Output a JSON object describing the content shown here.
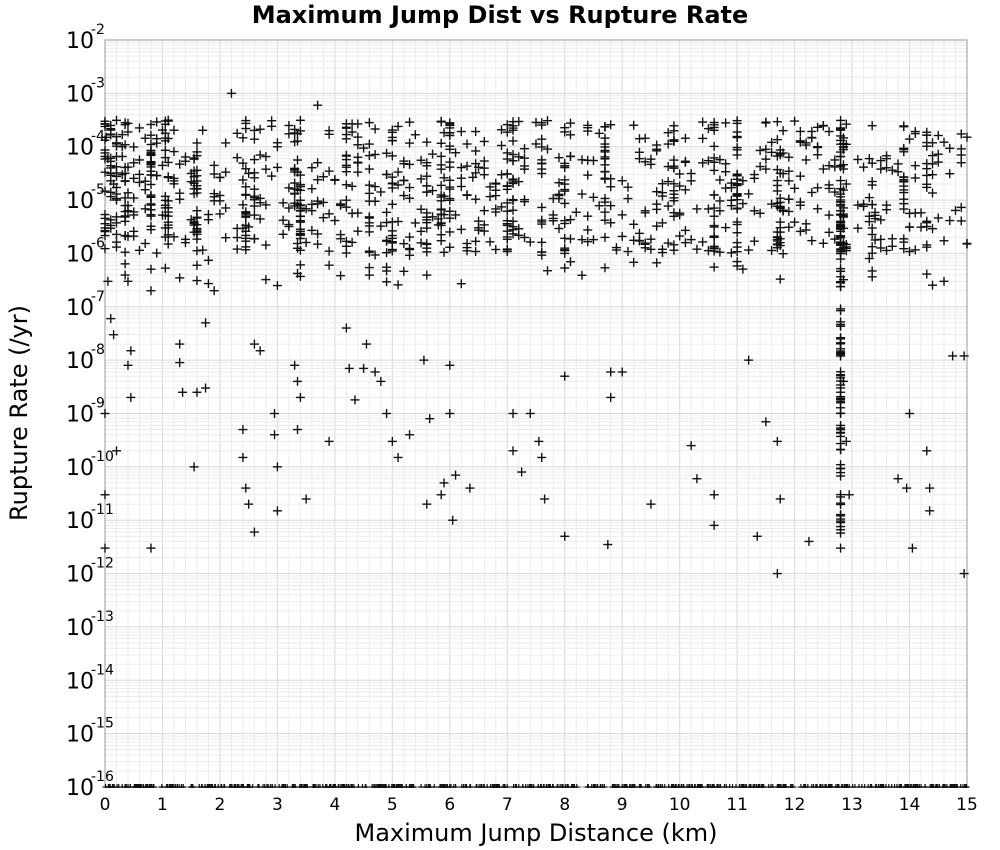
{
  "chart_data": {
    "type": "scatter",
    "title": "Maximum Jump Dist vs Rupture Rate",
    "xlabel": "Maximum Jump Distance (km)",
    "ylabel": "Rupture Rate (/yr)",
    "xlim": [
      0,
      15
    ],
    "ylim": [
      1e-16,
      0.01
    ],
    "yscale": "log",
    "grid": true,
    "marker": "+",
    "x_ticks": [
      "0",
      "1",
      "2",
      "3",
      "4",
      "5",
      "6",
      "7",
      "8",
      "9",
      "10",
      "11",
      "12",
      "13",
      "14",
      "15"
    ],
    "y_ticks": [
      {
        "base": "10",
        "exp": "-16"
      },
      {
        "base": "10",
        "exp": "-15"
      },
      {
        "base": "10",
        "exp": "-14"
      },
      {
        "base": "10",
        "exp": "-13"
      },
      {
        "base": "10",
        "exp": "-12"
      },
      {
        "base": "10",
        "exp": "-11"
      },
      {
        "base": "10",
        "exp": "-10"
      },
      {
        "base": "10",
        "exp": "-9"
      },
      {
        "base": "10",
        "exp": "-8"
      },
      {
        "base": "10",
        "exp": "-7"
      },
      {
        "base": "10",
        "exp": "-6"
      },
      {
        "base": "10",
        "exp": "-5"
      },
      {
        "base": "10",
        "exp": "-4"
      },
      {
        "base": "10",
        "exp": "-3"
      },
      {
        "base": "10",
        "exp": "-2"
      }
    ],
    "x_columns": [
      0.0,
      0.1,
      0.2,
      0.35,
      0.8,
      1.05,
      1.1,
      1.55,
      1.6,
      2.45,
      2.6,
      3.3,
      3.35,
      3.4,
      4.2,
      4.6,
      5.0,
      5.6,
      5.85,
      6.0,
      6.45,
      7.0,
      7.1,
      7.6,
      8.0,
      8.7,
      9.9,
      10.6,
      11.0,
      11.7,
      11.75,
      12.8,
      12.85,
      13.35,
      13.9,
      14.3
    ],
    "points": [
      [
        0.0,
        0.0003
      ],
      [
        0.02,
        0.00015
      ],
      [
        0.05,
        6e-05
      ],
      [
        0.1,
        4e-05
      ],
      [
        0.15,
        2e-05
      ],
      [
        0.2,
        1e-05
      ],
      [
        0.0,
        3e-06
      ],
      [
        0.05,
        3e-07
      ],
      [
        0.1,
        6e-08
      ],
      [
        0.15,
        3e-08
      ],
      [
        0.0,
        1e-09
      ],
      [
        0.0,
        3e-11
      ],
      [
        0.0,
        3e-12
      ],
      [
        0.2,
        2e-10
      ],
      [
        0.4,
        3e-07
      ],
      [
        0.4,
        8e-09
      ],
      [
        0.45,
        1.5e-08
      ],
      [
        0.45,
        2e-09
      ],
      [
        0.3,
        0.0001
      ],
      [
        0.3,
        3e-05
      ],
      [
        0.5,
        5e-05
      ],
      [
        0.5,
        6e-06
      ],
      [
        0.8,
        2e-07
      ],
      [
        0.8,
        3e-12
      ],
      [
        0.8,
        5e-06
      ],
      [
        1.05,
        8e-06
      ],
      [
        1.05,
        3e-06
      ],
      [
        1.1,
        1.5e-06
      ],
      [
        1.1,
        5e-06
      ],
      [
        1.3,
        2e-08
      ],
      [
        1.3,
        9e-09
      ],
      [
        1.35,
        2.5e-09
      ],
      [
        1.55,
        1e-10
      ],
      [
        1.55,
        2.5e-06
      ],
      [
        1.6,
        6e-07
      ],
      [
        1.6,
        2.5e-09
      ],
      [
        1.75,
        5e-08
      ],
      [
        1.75,
        3e-09
      ],
      [
        1.9,
        2e-07
      ],
      [
        2.2,
        0.001
      ],
      [
        2.4,
        5e-10
      ],
      [
        2.4,
        1.5e-10
      ],
      [
        2.45,
        4e-11
      ],
      [
        2.5,
        2e-11
      ],
      [
        2.6,
        6e-12
      ],
      [
        2.6,
        2e-08
      ],
      [
        2.7,
        1.5e-08
      ],
      [
        2.95,
        1e-09
      ],
      [
        2.95,
        4e-10
      ],
      [
        3.0,
        1e-10
      ],
      [
        3.0,
        1.5e-11
      ],
      [
        3.0,
        2.5e-07
      ],
      [
        3.3,
        8e-09
      ],
      [
        3.35,
        4e-09
      ],
      [
        3.35,
        5e-10
      ],
      [
        3.4,
        2e-09
      ],
      [
        3.5,
        2.5e-11
      ],
      [
        3.7,
        0.0006
      ],
      [
        3.9,
        3e-10
      ],
      [
        4.2,
        4e-08
      ],
      [
        4.25,
        7e-09
      ],
      [
        4.35,
        1.8e-09
      ],
      [
        4.5,
        7e-09
      ],
      [
        4.55,
        2e-08
      ],
      [
        4.7,
        6e-09
      ],
      [
        4.8,
        4e-09
      ],
      [
        4.9,
        1e-09
      ],
      [
        5.0,
        3e-10
      ],
      [
        5.1,
        1.5e-10
      ],
      [
        5.3,
        4e-10
      ],
      [
        5.55,
        1e-08
      ],
      [
        5.6,
        2e-11
      ],
      [
        5.65,
        8e-10
      ],
      [
        5.85,
        3e-11
      ],
      [
        5.9,
        5e-11
      ],
      [
        6.0,
        8e-09
      ],
      [
        6.0,
        1e-09
      ],
      [
        6.05,
        1e-11
      ],
      [
        6.1,
        7e-11
      ],
      [
        6.35,
        4e-11
      ],
      [
        7.1,
        1e-09
      ],
      [
        7.1,
        2e-10
      ],
      [
        7.25,
        8e-11
      ],
      [
        7.4,
        1e-09
      ],
      [
        7.55,
        3e-10
      ],
      [
        7.6,
        1.5e-10
      ],
      [
        7.65,
        2.5e-11
      ],
      [
        8.0,
        5e-09
      ],
      [
        8.0,
        5e-12
      ],
      [
        8.75,
        3.5e-12
      ],
      [
        8.8,
        2e-09
      ],
      [
        8.8,
        6e-09
      ],
      [
        9.0,
        6e-09
      ],
      [
        9.5,
        2e-11
      ],
      [
        10.2,
        2.5e-10
      ],
      [
        10.3,
        6e-11
      ],
      [
        10.6,
        3e-11
      ],
      [
        10.6,
        8e-12
      ],
      [
        11.2,
        1e-08
      ],
      [
        11.35,
        5e-12
      ],
      [
        11.5,
        7e-10
      ],
      [
        11.7,
        1e-12
      ],
      [
        11.7,
        3e-10
      ],
      [
        11.75,
        2.5e-11
      ],
      [
        12.25,
        4e-12
      ],
      [
        12.8,
        3e-12
      ],
      [
        12.8,
        5e-10
      ],
      [
        12.85,
        4e-09
      ],
      [
        12.9,
        3e-10
      ],
      [
        12.95,
        3e-11
      ],
      [
        13.8,
        6e-11
      ],
      [
        13.95,
        4e-11
      ],
      [
        14.0,
        1e-09
      ],
      [
        14.05,
        3e-12
      ],
      [
        14.3,
        2e-10
      ],
      [
        14.35,
        4e-11
      ],
      [
        14.35,
        1.5e-11
      ],
      [
        14.6,
        3e-07
      ],
      [
        14.75,
        1.2e-08
      ],
      [
        14.95,
        1.2e-08
      ],
      [
        14.95,
        1e-12
      ]
    ],
    "floor_points_note_value": 1e-16
  }
}
